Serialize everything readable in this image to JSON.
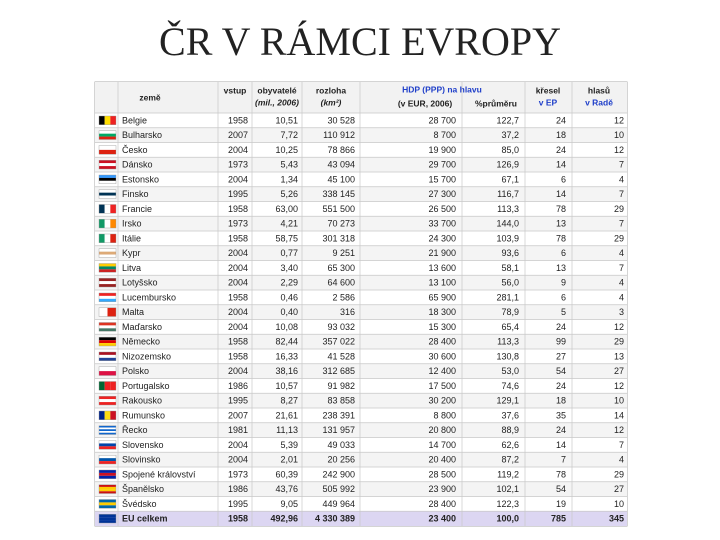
{
  "title": "ČR V RÁMCI EVROPY",
  "table": {
    "header": {
      "country": "země",
      "joined": "vstup",
      "population": [
        "obyvatelé",
        "(mil., 2006)"
      ],
      "area": [
        "rozloha",
        "(km²)"
      ],
      "gdp": [
        "HDP (PPP) na hlavu",
        "(v EUR, 2006)",
        "%průměru"
      ],
      "seats": [
        "křesel",
        "v EP"
      ],
      "votes": [
        "hlasů",
        "v Radě"
      ]
    },
    "rows": [
      [
        "Belgie",
        "1958",
        "10,51",
        "30 528",
        "28 700",
        "122,7",
        "24",
        "12"
      ],
      [
        "Bulharsko",
        "2007",
        "7,72",
        "110 912",
        "8 700",
        "37,2",
        "18",
        "10"
      ],
      [
        "Česko",
        "2004",
        "10,25",
        "78 866",
        "19 900",
        "85,0",
        "24",
        "12"
      ],
      [
        "Dánsko",
        "1973",
        "5,43",
        "43 094",
        "29 700",
        "126,9",
        "14",
        "7"
      ],
      [
        "Estonsko",
        "2004",
        "1,34",
        "45 100",
        "15 700",
        "67,1",
        "6",
        "4"
      ],
      [
        "Finsko",
        "1995",
        "5,26",
        "338 145",
        "27 300",
        "116,7",
        "14",
        "7"
      ],
      [
        "Francie",
        "1958",
        "63,00",
        "551 500",
        "26 500",
        "113,3",
        "78",
        "29"
      ],
      [
        "Irsko",
        "1973",
        "4,21",
        "70 273",
        "33 700",
        "144,0",
        "13",
        "7"
      ],
      [
        "Itálie",
        "1958",
        "58,75",
        "301 318",
        "24 300",
        "103,9",
        "78",
        "29"
      ],
      [
        "Kypr",
        "2004",
        "0,77",
        "9 251",
        "21 900",
        "93,6",
        "6",
        "4"
      ],
      [
        "Litva",
        "2004",
        "3,40",
        "65 300",
        "13 600",
        "58,1",
        "13",
        "7"
      ],
      [
        "Lotyšsko",
        "2004",
        "2,29",
        "64 600",
        "13 100",
        "56,0",
        "9",
        "4"
      ],
      [
        "Lucembursko",
        "1958",
        "0,46",
        "2 586",
        "65 900",
        "281,1",
        "6",
        "4"
      ],
      [
        "Malta",
        "2004",
        "0,40",
        "316",
        "18 300",
        "78,9",
        "5",
        "3"
      ],
      [
        "Maďarsko",
        "2004",
        "10,08",
        "93 032",
        "15 300",
        "65,4",
        "24",
        "12"
      ],
      [
        "Německo",
        "1958",
        "82,44",
        "357 022",
        "28 400",
        "113,3",
        "99",
        "29"
      ],
      [
        "Nizozemsko",
        "1958",
        "16,33",
        "41 528",
        "30 600",
        "130,8",
        "27",
        "13"
      ],
      [
        "Polsko",
        "2004",
        "38,16",
        "312 685",
        "12 400",
        "53,0",
        "54",
        "27"
      ],
      [
        "Portugalsko",
        "1986",
        "10,57",
        "91 982",
        "17 500",
        "74,6",
        "24",
        "12"
      ],
      [
        "Rakousko",
        "1995",
        "8,27",
        "83 858",
        "30 200",
        "129,1",
        "18",
        "10"
      ],
      [
        "Rumunsko",
        "2007",
        "21,61",
        "238 391",
        "8 800",
        "37,6",
        "35",
        "14"
      ],
      [
        "Řecko",
        "1981",
        "11,13",
        "131 957",
        "20 800",
        "88,9",
        "24",
        "12"
      ],
      [
        "Slovensko",
        "2004",
        "5,39",
        "49 033",
        "14 700",
        "62,6",
        "14",
        "7"
      ],
      [
        "Slovinsko",
        "2004",
        "2,01",
        "20 256",
        "20 400",
        "87,2",
        "7",
        "4"
      ],
      [
        "Spojené království",
        "1973",
        "60,39",
        "242 900",
        "28 500",
        "119,2",
        "78",
        "29"
      ],
      [
        "Španělsko",
        "1986",
        "43,76",
        "505 992",
        "23 900",
        "102,1",
        "54",
        "27"
      ],
      [
        "Švédsko",
        "1995",
        "9,05",
        "449 964",
        "28 400",
        "122,3",
        "19",
        "10"
      ],
      [
        "EU celkem",
        "1958",
        "492,96",
        "4 330 389",
        "23 400",
        "100,0",
        "785",
        "345"
      ]
    ]
  }
}
